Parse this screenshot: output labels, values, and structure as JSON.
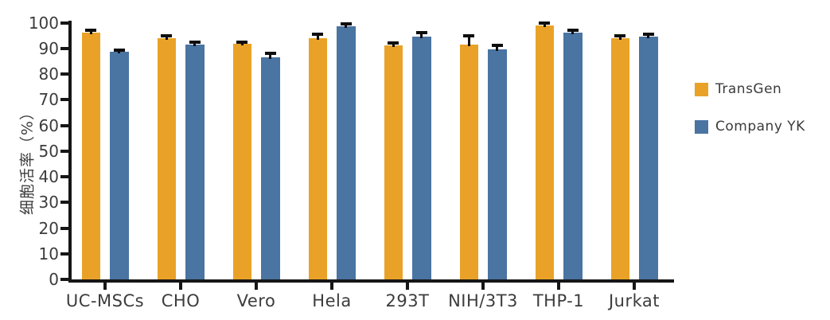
{
  "chart_data": {
    "type": "bar",
    "title": "",
    "xlabel": "",
    "ylabel": "细胞活率（%）",
    "ylim": [
      0,
      100
    ],
    "yticks": [
      0,
      10,
      20,
      30,
      40,
      50,
      60,
      70,
      80,
      90,
      100
    ],
    "grid": false,
    "legend_position": "right",
    "categories": [
      "UC-MSCs",
      "CHO",
      "Vero",
      "Hela",
      "293T",
      "NIH/3T3",
      "THP-1",
      "Jurkat"
    ],
    "series": [
      {
        "name": "TransGen",
        "color": "#E9A227",
        "values": [
          96.2,
          94.0,
          91.7,
          94.0,
          91.3,
          91.5,
          99.0,
          94.0
        ],
        "errors": [
          1.0,
          0.9,
          0.8,
          1.4,
          0.9,
          3.4,
          0.7,
          1.0
        ]
      },
      {
        "name": "Company YK",
        "color": "#4A74A2",
        "values": [
          88.6,
          91.4,
          86.5,
          98.7,
          94.6,
          89.6,
          96.2,
          94.6
        ],
        "errors": [
          0.8,
          0.9,
          1.5,
          0.8,
          1.4,
          1.5,
          0.9,
          0.8
        ]
      }
    ],
    "error_bar_color": "#0d0d0d"
  }
}
